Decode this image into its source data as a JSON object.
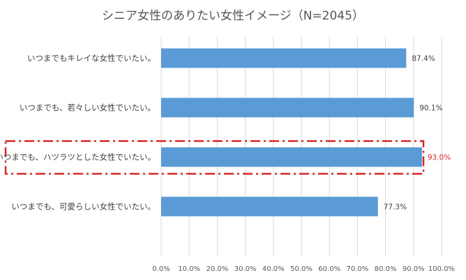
{
  "chart_data": {
    "type": "bar",
    "orientation": "horizontal",
    "title": "シニア女性のありたい女性イメージ（N=2045）",
    "categories": [
      "いつまでもキレイな女性でいたい。",
      "いつまでも、若々しい女性でいたい。",
      "いつまでも、ハツラツとした女性でいたい。",
      "いつまでも、可愛らしい女性でいたい。"
    ],
    "values": [
      87.4,
      90.1,
      93.0,
      77.3
    ],
    "data_labels": [
      "87.4%",
      "90.1%",
      "93.0%",
      "77.3%"
    ],
    "highlighted_index": 2,
    "xlim": [
      0,
      100
    ],
    "ticks": [
      "0.0%",
      "10.0%",
      "20.0%",
      "30.0%",
      "40.0%",
      "50.0%",
      "60.0%",
      "70.0%",
      "80.0%",
      "90.0%",
      "100.0%"
    ],
    "grid": true,
    "colors": {
      "bar": "#5b9bd5",
      "highlight": "#d62728",
      "grid": "#d9d9d9",
      "title": "#555555"
    }
  }
}
